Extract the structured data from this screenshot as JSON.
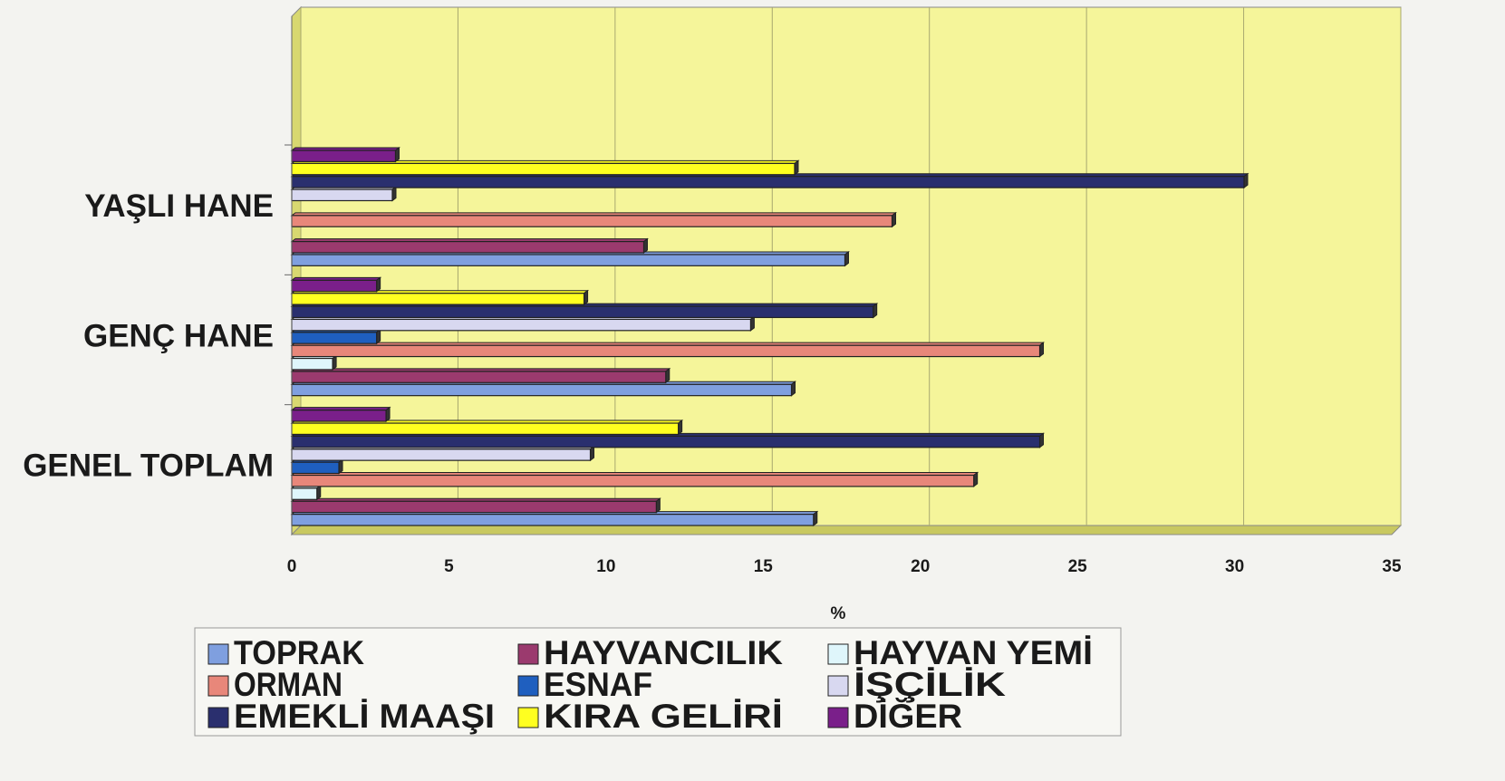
{
  "chart_data": {
    "type": "hbar",
    "categories": [
      "YAŞLI HANE",
      "GENÇ HANE",
      "GENEL TOPLAM"
    ],
    "series": [
      {
        "name": "TOPRAK",
        "color": "#7f9fdf",
        "values": [
          17.6,
          15.9,
          16.6
        ]
      },
      {
        "name": "HAYVANCILIK",
        "color": "#9b3a6e",
        "values": [
          11.2,
          11.9,
          11.6
        ]
      },
      {
        "name": "HAYVAN YEMİ",
        "color": "#dff6fb",
        "values": [
          0,
          1.3,
          0.8
        ]
      },
      {
        "name": "ORMAN",
        "color": "#e8877a",
        "values": [
          19.1,
          23.8,
          21.7
        ]
      },
      {
        "name": "ESNAF",
        "color": "#1f5fbf",
        "values": [
          0,
          2.7,
          1.5
        ]
      },
      {
        "name": "İŞÇİLİK",
        "color": "#d8d8f0",
        "values": [
          3.2,
          14.6,
          9.5
        ]
      },
      {
        "name": "EMEKLİ MAAŞI",
        "color": "#2a2f6e",
        "values": [
          30.3,
          18.5,
          23.8
        ]
      },
      {
        "name": "KIRA GELİRİ",
        "color": "#ffff20",
        "values": [
          16,
          9.3,
          12.3
        ]
      },
      {
        "name": "DİĞER",
        "color": "#7a1f8a",
        "values": [
          3.3,
          2.7,
          3.0
        ]
      }
    ],
    "xlabel": "%",
    "xlim": [
      0,
      35
    ],
    "xticks": [
      0,
      5,
      10,
      15,
      20,
      25,
      30,
      35
    ],
    "grid": true,
    "background": "#f5f59a"
  }
}
